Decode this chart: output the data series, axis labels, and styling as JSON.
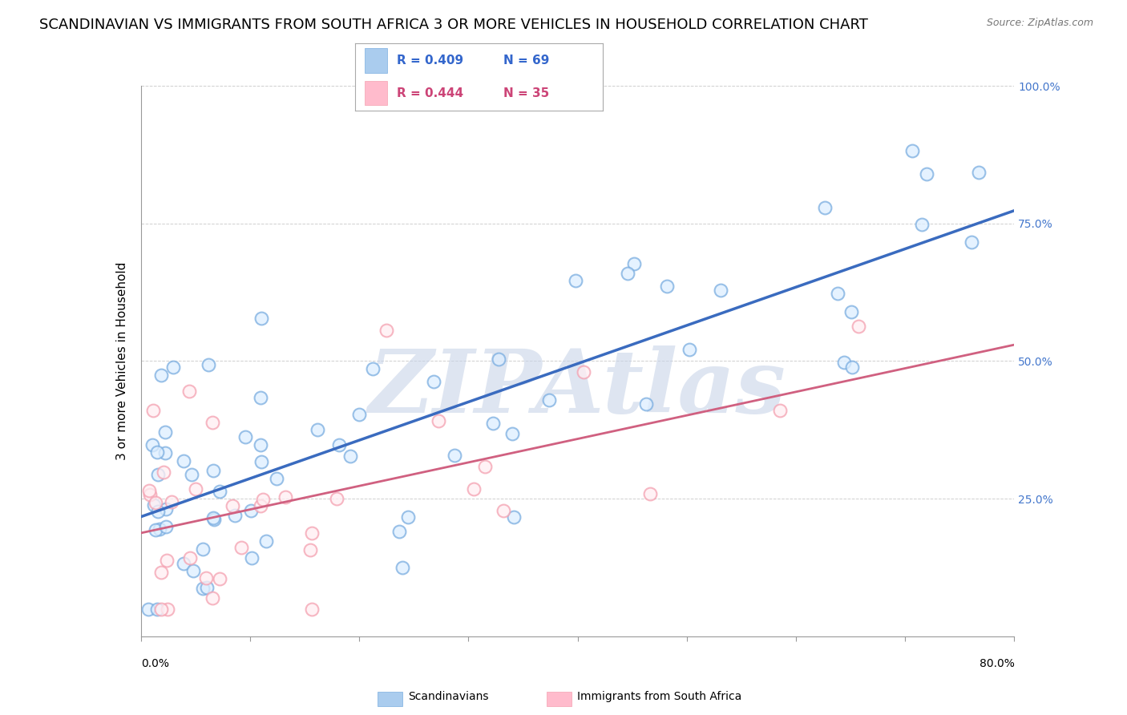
{
  "title": "SCANDINAVIAN VS IMMIGRANTS FROM SOUTH AFRICA 3 OR MORE VEHICLES IN HOUSEHOLD CORRELATION CHART",
  "source": "Source: ZipAtlas.com",
  "ylabel": "3 or more Vehicles in Household",
  "xlim": [
    0.0,
    80.0
  ],
  "ylim": [
    0.0,
    100.0
  ],
  "yticks": [
    0,
    25,
    50,
    75,
    100
  ],
  "ytick_labels": [
    "",
    "25.0%",
    "50.0%",
    "75.0%",
    "100.0%"
  ],
  "grid_color": "#bbbbbb",
  "watermark": "ZIPAtlas",
  "watermark_color": "#c8d4e8",
  "blue_color": "#7aade0",
  "pink_color": "#f4a0b0",
  "blue_line_color": "#3a6bbf",
  "pink_line_color": "#d06080",
  "blue_R": 0.409,
  "blue_N": 69,
  "pink_R": 0.444,
  "pink_N": 35,
  "blue_legend": "Scandinavians",
  "pink_legend": "Immigrants from South Africa",
  "legend_R_color": "#3366cc",
  "legend_R_pink_color": "#cc4477",
  "bg_color": "#ffffff",
  "title_fontsize": 13,
  "axis_label_fontsize": 11,
  "tick_fontsize": 10
}
